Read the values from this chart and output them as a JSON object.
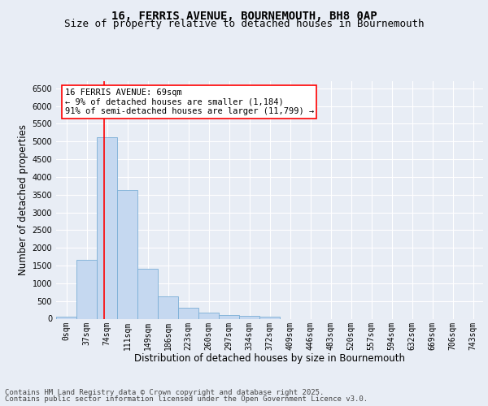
{
  "title_line1": "16, FERRIS AVENUE, BOURNEMOUTH, BH8 0AP",
  "title_line2": "Size of property relative to detached houses in Bournemouth",
  "xlabel": "Distribution of detached houses by size in Bournemouth",
  "ylabel": "Number of detached properties",
  "footer_line1": "Contains HM Land Registry data © Crown copyright and database right 2025.",
  "footer_line2": "Contains public sector information licensed under the Open Government Licence v3.0.",
  "bar_labels": [
    "0sqm",
    "37sqm",
    "74sqm",
    "111sqm",
    "149sqm",
    "186sqm",
    "223sqm",
    "260sqm",
    "297sqm",
    "334sqm",
    "372sqm",
    "409sqm",
    "446sqm",
    "483sqm",
    "520sqm",
    "557sqm",
    "594sqm",
    "632sqm",
    "669sqm",
    "706sqm",
    "743sqm"
  ],
  "bar_values": [
    55,
    1650,
    5120,
    3630,
    1420,
    620,
    300,
    165,
    110,
    75,
    50,
    0,
    0,
    0,
    0,
    0,
    0,
    0,
    0,
    0,
    0
  ],
  "bar_color": "#c5d8f0",
  "bar_edge_color": "#7aaed6",
  "vline_x": 1.87,
  "vline_color": "red",
  "annotation_text": "16 FERRIS AVENUE: 69sqm\n← 9% of detached houses are smaller (1,184)\n91% of semi-detached houses are larger (11,799) →",
  "ylim": [
    0,
    6700
  ],
  "yticks": [
    0,
    500,
    1000,
    1500,
    2000,
    2500,
    3000,
    3500,
    4000,
    4500,
    5000,
    5500,
    6000,
    6500
  ],
  "background_color": "#e8edf5",
  "plot_background": "#e8edf5",
  "grid_color": "#ffffff",
  "title_fontsize": 10,
  "subtitle_fontsize": 9,
  "axis_label_fontsize": 8.5,
  "tick_fontsize": 7,
  "annotation_fontsize": 7.5,
  "footer_fontsize": 6.5
}
